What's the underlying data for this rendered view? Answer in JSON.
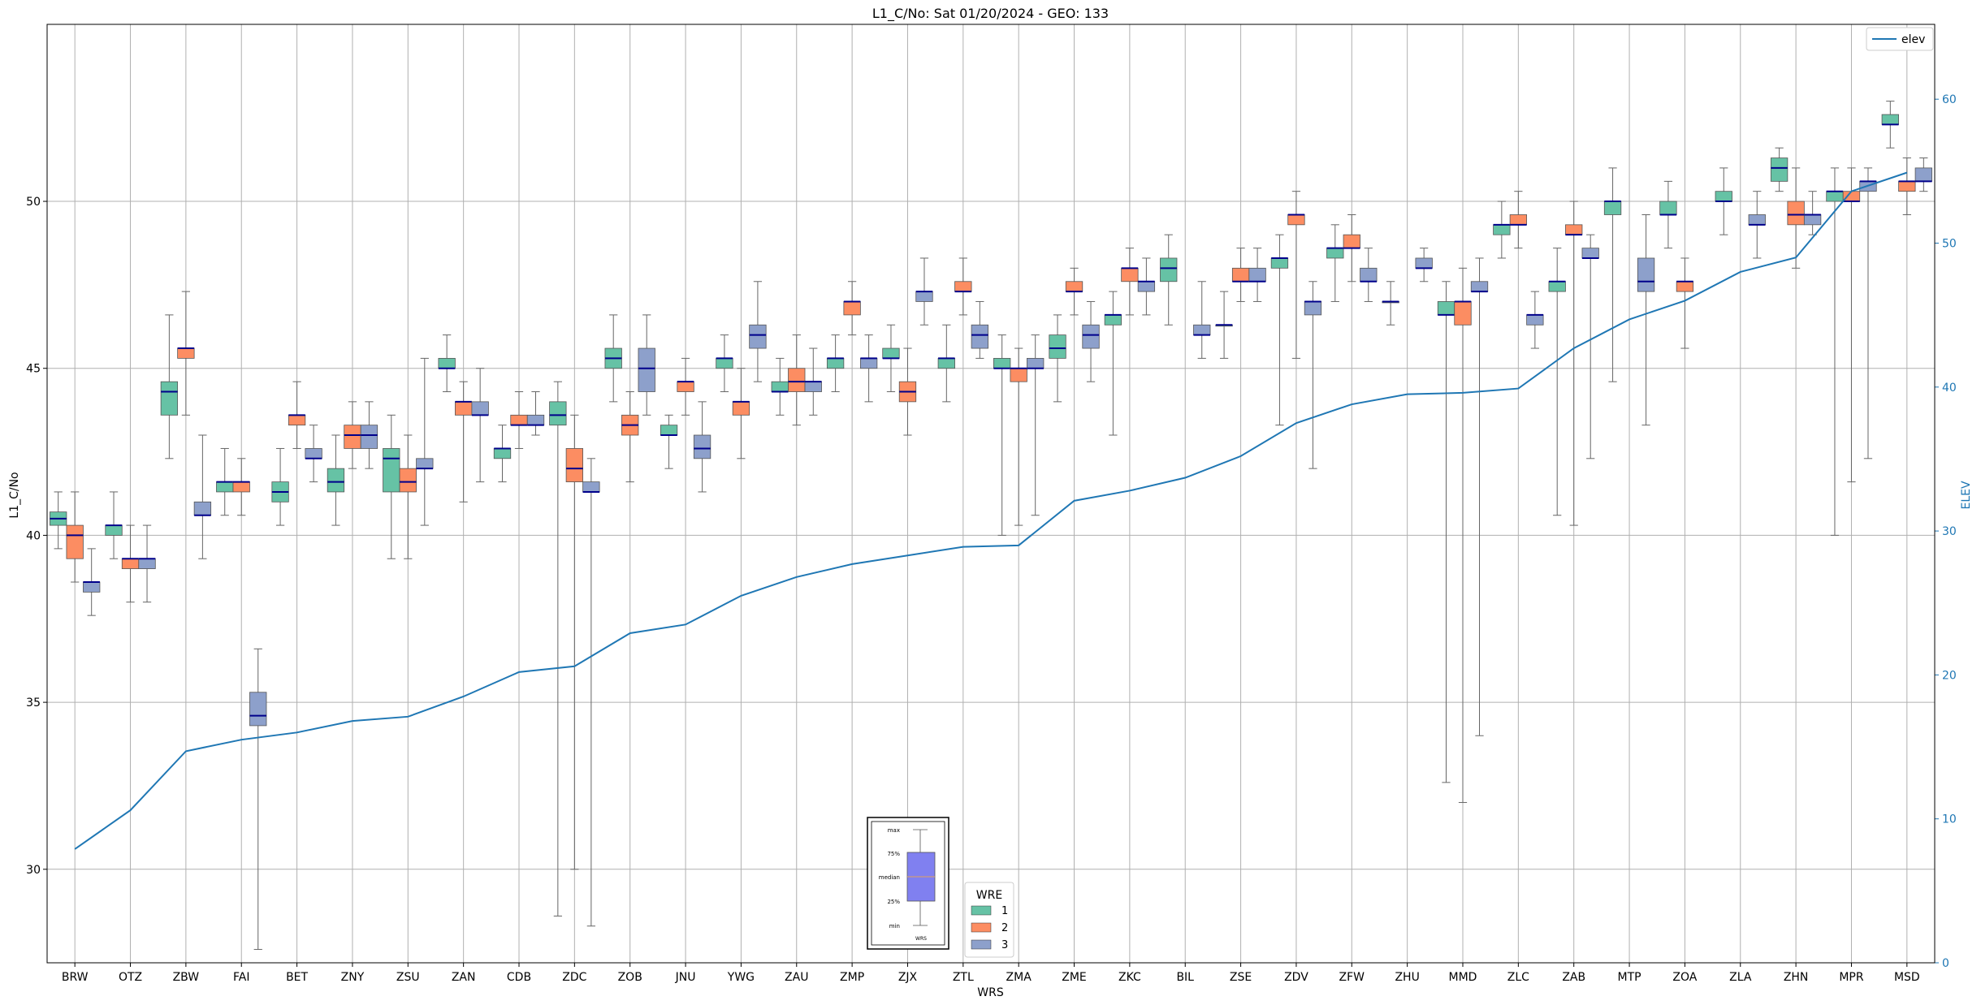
{
  "chart_data": {
    "type": "box",
    "title": "L1_C/No: Sat 01/20/2024 - GEO: 133",
    "xlabel": "WRS",
    "ylabel": "L1_C/No",
    "ylabel_right": "ELEV",
    "ylim": [
      27.2,
      55.3
    ],
    "ylim_right": [
      0,
      65.2
    ],
    "yticks": [
      30,
      35,
      40,
      45,
      50
    ],
    "yticks_right": [
      0,
      10,
      20,
      30,
      40,
      50,
      60
    ],
    "grid": true,
    "categories": [
      "BRW",
      "OTZ",
      "ZBW",
      "FAI",
      "BET",
      "ZNY",
      "ZSU",
      "ZAN",
      "CDB",
      "ZDC",
      "ZOB",
      "JNU",
      "YWG",
      "ZAU",
      "ZMP",
      "ZJX",
      "ZTL",
      "ZMA",
      "ZME",
      "ZKC",
      "BIL",
      "ZSE",
      "ZDV",
      "ZFW",
      "ZHU",
      "MMD",
      "ZLC",
      "ZAB",
      "MTP",
      "ZOA",
      "ZLA",
      "ZHN",
      "MPR",
      "MSD"
    ],
    "series": [
      {
        "name": "1",
        "color": "#66c2a5",
        "boxes": [
          [
            39.6,
            40.3,
            40.5,
            40.7,
            41.3
          ],
          [
            39.3,
            40.0,
            40.3,
            40.3,
            41.3
          ],
          [
            42.3,
            43.6,
            44.3,
            44.6,
            46.6
          ],
          [
            40.6,
            41.3,
            41.6,
            41.6,
            42.6
          ],
          [
            40.3,
            41.0,
            41.3,
            41.6,
            42.6
          ],
          [
            40.3,
            41.3,
            41.6,
            42.0,
            43.0
          ],
          [
            39.3,
            41.3,
            42.3,
            42.6,
            43.6
          ],
          [
            44.3,
            45.0,
            45.0,
            45.3,
            46.0
          ],
          [
            41.6,
            42.3,
            42.6,
            42.6,
            43.3
          ],
          [
            28.6,
            43.3,
            43.6,
            44.0,
            44.6
          ],
          [
            44.0,
            45.0,
            45.3,
            45.6,
            46.6
          ],
          [
            42.0,
            43.0,
            43.0,
            43.3,
            43.6
          ],
          [
            44.3,
            45.0,
            45.3,
            45.3,
            46.0
          ],
          [
            43.6,
            44.3,
            44.3,
            44.6,
            45.3
          ],
          [
            44.3,
            45.0,
            45.3,
            45.3,
            46.0
          ],
          [
            44.3,
            45.3,
            45.3,
            45.6,
            46.3
          ],
          [
            44.0,
            45.0,
            45.3,
            45.3,
            46.3
          ],
          [
            40.0,
            45.0,
            45.0,
            45.3,
            46.0
          ],
          [
            44.0,
            45.3,
            45.6,
            46.0,
            46.6
          ],
          [
            43.0,
            46.3,
            46.6,
            46.6,
            47.3
          ],
          [
            46.3,
            47.6,
            48.0,
            48.3,
            49.0
          ],
          [
            45.3,
            46.3,
            46.3,
            46.3,
            47.3
          ],
          [
            43.3,
            48.0,
            48.3,
            48.3,
            49.0
          ],
          [
            47.0,
            48.3,
            48.6,
            48.6,
            49.3
          ],
          [
            46.3,
            47.0,
            47.0,
            47.0,
            47.6
          ],
          [
            32.6,
            46.6,
            46.6,
            47.0,
            47.6
          ],
          [
            48.3,
            49.0,
            49.3,
            49.3,
            50.0
          ],
          [
            40.6,
            47.3,
            47.6,
            47.6,
            48.6
          ],
          [
            44.6,
            49.6,
            50.0,
            50.0,
            51.0
          ],
          [
            48.6,
            49.6,
            49.6,
            50.0,
            50.6
          ],
          [
            49.0,
            50.0,
            50.0,
            50.3,
            51.0
          ],
          [
            50.3,
            50.6,
            51.0,
            51.3,
            51.6
          ],
          [
            40.0,
            50.0,
            50.3,
            50.3,
            51.0
          ],
          [
            51.6,
            52.3,
            52.3,
            52.6,
            53.0
          ]
        ]
      },
      {
        "name": "2",
        "color": "#fc8d62",
        "boxes": [
          [
            38.6,
            39.3,
            40.0,
            40.3,
            41.3
          ],
          [
            38.0,
            39.0,
            39.3,
            39.3,
            40.3
          ],
          [
            43.6,
            45.3,
            45.6,
            45.6,
            47.3
          ],
          [
            40.6,
            41.3,
            41.6,
            41.6,
            42.3
          ],
          [
            42.6,
            43.3,
            43.6,
            43.6,
            44.6
          ],
          [
            42.0,
            42.6,
            43.0,
            43.3,
            44.0
          ],
          [
            39.3,
            41.3,
            41.6,
            42.0,
            43.0
          ],
          [
            41.0,
            43.6,
            44.0,
            44.0,
            44.6
          ],
          [
            42.6,
            43.3,
            43.3,
            43.6,
            44.3
          ],
          [
            30.0,
            41.6,
            42.0,
            42.6,
            43.6
          ],
          [
            41.6,
            43.0,
            43.3,
            43.6,
            44.3
          ],
          [
            43.6,
            44.3,
            44.6,
            44.6,
            45.3
          ],
          [
            42.3,
            43.6,
            44.0,
            44.0,
            45.0
          ],
          [
            43.3,
            44.3,
            44.6,
            45.0,
            46.0
          ],
          [
            46.0,
            46.6,
            47.0,
            47.0,
            47.6
          ],
          [
            43.0,
            44.0,
            44.3,
            44.6,
            45.6
          ],
          [
            46.6,
            47.3,
            47.3,
            47.6,
            48.3
          ],
          [
            40.3,
            44.6,
            45.0,
            45.0,
            45.6
          ],
          [
            46.6,
            47.3,
            47.3,
            47.6,
            48.0
          ],
          [
            46.6,
            47.6,
            48.0,
            48.0,
            48.6
          ],
          [
            47.0,
            47.6,
            47.6,
            48.0,
            48.6
          ],
          [
            45.3,
            49.3,
            49.6,
            49.6,
            50.3
          ],
          [
            47.6,
            48.6,
            48.6,
            49.0,
            49.6
          ],
          [
            32.0,
            46.3,
            47.0,
            47.0,
            48.0
          ],
          [
            48.6,
            49.3,
            49.3,
            49.6,
            50.3
          ],
          [
            40.3,
            49.0,
            49.0,
            49.3,
            50.0
          ],
          [
            45.6,
            47.3,
            47.6,
            47.6,
            48.3
          ],
          [
            48.0,
            49.3,
            49.6,
            50.0,
            51.0
          ],
          [
            41.6,
            50.0,
            50.0,
            50.3,
            51.0
          ],
          [
            49.6,
            50.3,
            50.6,
            50.6,
            51.3
          ]
        ]
      },
      {
        "name": "3",
        "color": "#8da0cb",
        "boxes": [
          [
            37.6,
            38.3,
            38.6,
            38.6,
            39.6
          ],
          [
            38.0,
            39.0,
            39.3,
            39.3,
            40.3
          ],
          [
            39.3,
            40.6,
            40.6,
            41.0,
            43.0
          ],
          [
            27.6,
            34.3,
            34.6,
            35.3,
            36.6
          ],
          [
            41.6,
            42.3,
            42.3,
            42.6,
            43.3
          ],
          [
            42.0,
            42.6,
            43.0,
            43.3,
            44.0
          ],
          [
            40.3,
            42.0,
            42.0,
            42.3,
            45.3
          ],
          [
            41.6,
            43.6,
            43.6,
            44.0,
            45.0
          ],
          [
            43.0,
            43.3,
            43.3,
            43.6,
            44.3
          ],
          [
            28.3,
            41.3,
            41.3,
            41.6,
            42.3
          ],
          [
            43.6,
            44.3,
            45.0,
            45.6,
            46.6
          ],
          [
            41.3,
            42.3,
            42.6,
            43.0,
            44.0
          ],
          [
            44.6,
            45.6,
            46.0,
            46.3,
            47.6
          ],
          [
            43.6,
            44.3,
            44.6,
            44.6,
            45.6
          ],
          [
            44.0,
            45.0,
            45.3,
            45.3,
            46.0
          ],
          [
            46.3,
            47.0,
            47.3,
            47.3,
            48.3
          ],
          [
            45.3,
            45.6,
            46.0,
            46.3,
            47.0
          ],
          [
            40.6,
            45.0,
            45.0,
            45.3,
            46.0
          ],
          [
            44.6,
            45.6,
            46.0,
            46.3,
            47.0
          ],
          [
            46.6,
            47.3,
            47.6,
            47.6,
            48.3
          ],
          [
            45.3,
            46.0,
            46.0,
            46.3,
            47.6
          ],
          [
            47.0,
            47.6,
            47.6,
            48.0,
            48.6
          ],
          [
            42.0,
            46.6,
            47.0,
            47.0,
            47.6
          ],
          [
            47.0,
            47.6,
            47.6,
            48.0,
            48.6
          ],
          [
            47.6,
            48.0,
            48.0,
            48.3,
            48.6
          ],
          [
            34.0,
            47.3,
            47.3,
            47.6,
            48.3
          ],
          [
            45.6,
            46.3,
            46.6,
            46.6,
            47.3
          ],
          [
            42.3,
            48.3,
            48.3,
            48.6,
            49.0
          ],
          [
            43.3,
            47.3,
            47.6,
            48.3,
            49.6
          ],
          [
            48.3,
            49.3,
            49.3,
            49.6,
            50.3
          ],
          [
            49.0,
            49.3,
            49.6,
            49.6,
            50.3
          ],
          [
            42.3,
            50.3,
            50.6,
            50.6,
            51.0
          ],
          [
            50.3,
            50.6,
            50.6,
            51.0,
            51.3
          ]
        ]
      }
    ],
    "series_categories": {
      "1": [
        "BRW",
        "OTZ",
        "ZBW",
        "FAI",
        "BET",
        "ZNY",
        "ZSU",
        "ZAN",
        "CDB",
        "ZDC",
        "ZOB",
        "JNU",
        "YWG",
        "ZAU",
        "ZMP",
        "ZJX",
        "ZTL",
        "ZMA",
        "ZME",
        "ZKC",
        "BIL",
        "ZSE",
        "ZDV",
        "ZFW",
        "ZHU",
        "MMD",
        "ZLC",
        "ZAB",
        "MTP",
        "ZOA",
        "ZLA",
        "ZHN",
        "MPR",
        "MSD"
      ],
      "2": [
        "BRW",
        "OTZ",
        "ZBW",
        "FAI",
        "BET",
        "ZNY",
        "ZSU",
        "ZAN",
        "CDB",
        "ZDC",
        "ZOB",
        "JNU",
        "YWG",
        "ZAU",
        "ZMP",
        "ZJX",
        "ZTL",
        "ZMA",
        "ZME",
        "ZKC",
        "ZSE",
        "ZDV",
        "ZFW",
        "MMD",
        "ZLC",
        "ZAB",
        "ZOA",
        "ZHN",
        "MPR",
        "MSD"
      ],
      "3": [
        "BRW",
        "OTZ",
        "ZBW",
        "FAI",
        "BET",
        "ZNY",
        "ZSU",
        "ZAN",
        "CDB",
        "ZDC",
        "ZOB",
        "JNU",
        "YWG",
        "ZAU",
        "ZMP",
        "ZJX",
        "ZTL",
        "ZMA",
        "ZME",
        "ZKC",
        "BIL",
        "ZSE",
        "ZDV",
        "ZFW",
        "ZHU",
        "MMD",
        "ZLC",
        "ZAB",
        "MTP",
        "ZLA",
        "ZHN",
        "MPR",
        "MSD"
      ]
    },
    "elev": {
      "name": "elev",
      "color": "#1f77b4",
      "values": [
        7.9,
        10.6,
        14.7,
        15.5,
        16.0,
        16.8,
        17.1,
        18.5,
        20.2,
        20.6,
        22.9,
        23.5,
        25.5,
        26.8,
        27.7,
        28.3,
        28.9,
        29.0,
        32.1,
        32.8,
        33.7,
        35.2,
        37.5,
        38.8,
        39.5,
        39.6,
        39.9,
        42.7,
        44.7,
        46.0,
        48.0,
        49.0,
        53.6,
        54.9
      ]
    },
    "legend_elev": {
      "position": "top-right",
      "label": "elev"
    },
    "legend_wre": {
      "title": "WRE",
      "labels": [
        "1",
        "2",
        "3"
      ],
      "position": "bottom-center"
    },
    "key_box": {
      "labels": [
        "max",
        "75%",
        "median",
        "25%",
        "min"
      ],
      "xlabel": "WRS"
    }
  }
}
